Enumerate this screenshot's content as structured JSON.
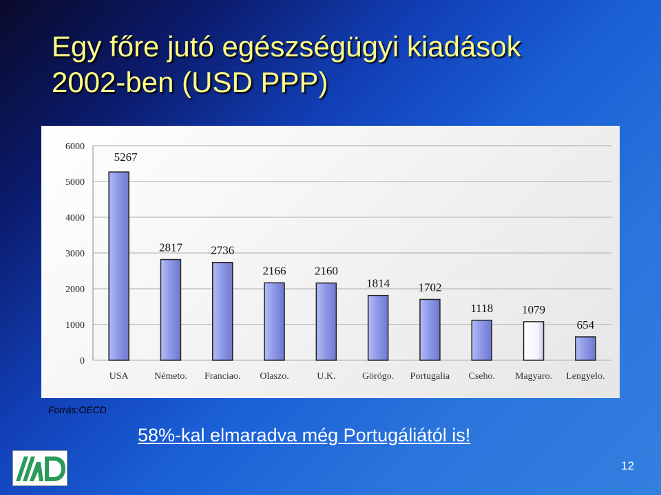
{
  "slide": {
    "title_line1": "Egy főre jutó egészségügyi kiadások",
    "title_line2": "2002-ben (USD PPP)",
    "source": "Forrás:OECD",
    "footer": "58%-kal elmaradva még Portugáliától is!",
    "page_number": "12"
  },
  "chart_data": {
    "type": "bar",
    "categories": [
      "USA",
      "Németo.",
      "Franciao.",
      "Olaszo.",
      "U.K.",
      "Görögo.",
      "Portugalia",
      "Cseho.",
      "Magyaro.",
      "Lengyelo."
    ],
    "values": [
      5267,
      2817,
      2736,
      2166,
      2160,
      1814,
      1702,
      1118,
      1079,
      654
    ],
    "data_labels": [
      "5267",
      "2817",
      "2736",
      "2166",
      "2160",
      "1814",
      "1702",
      "1118",
      "1079",
      "654"
    ],
    "yticks": [
      "0",
      "1000",
      "2000",
      "3000",
      "4000",
      "5000",
      "6000"
    ],
    "ylim": [
      0,
      6000
    ],
    "title": "",
    "xlabel": "",
    "ylabel": "",
    "grid": true,
    "colors": {
      "bar": "#8c96e6",
      "highlight_bar": "#ffffff"
    },
    "highlight_index": 8
  }
}
